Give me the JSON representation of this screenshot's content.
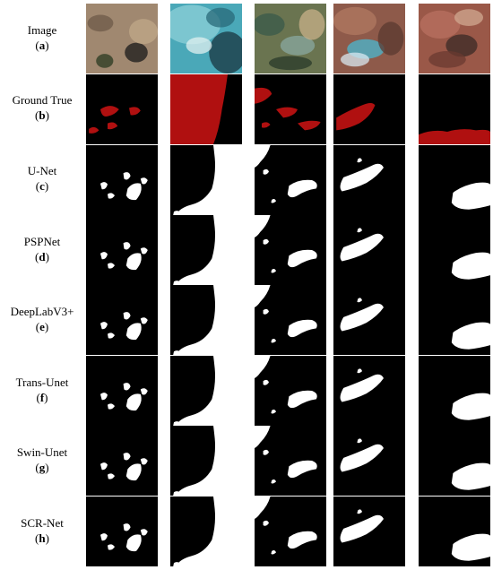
{
  "figure": {
    "rows": [
      {
        "name": "Image",
        "letter": "a",
        "kind": "image"
      },
      {
        "name": "Ground True",
        "letter": "b",
        "kind": "truth"
      },
      {
        "name": "U-Net",
        "letter": "c",
        "kind": "mask"
      },
      {
        "name": "PSPNet",
        "letter": "d",
        "kind": "mask"
      },
      {
        "name": "DeepLabV3+",
        "letter": "e",
        "kind": "mask"
      },
      {
        "name": "Trans-Unet",
        "letter": "f",
        "kind": "mask"
      },
      {
        "name": "Swin-Unet",
        "letter": "g",
        "kind": "mask"
      },
      {
        "name": "SCR-Net",
        "letter": "h",
        "kind": "mask"
      }
    ],
    "columns": 5,
    "colors": {
      "mask_background": "#000000",
      "mask_foreground": "#ffffff",
      "ground_truth_foreground": "#b01010",
      "scene_colors": [
        "#a08870",
        "#4aa8b8",
        "#6a7450",
        "#8e5a4a",
        "#9a5848"
      ]
    }
  }
}
